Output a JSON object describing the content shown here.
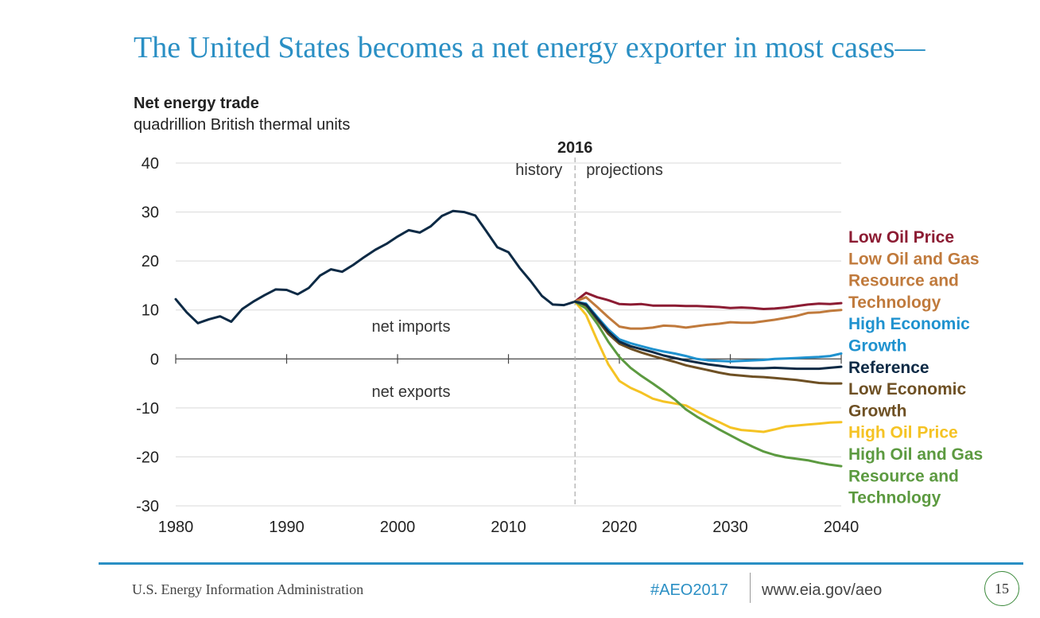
{
  "slide": {
    "title": "The United States becomes a net energy exporter in most cases—"
  },
  "footer": {
    "agency": "U.S. Energy Information Administration",
    "hashtag": "#AEO2017",
    "url": "www.eia.gov/aeo",
    "page_number": "15"
  },
  "chart_data": {
    "type": "line",
    "title": "Net energy trade",
    "subtitle": "quadrillion British thermal units",
    "xlim": [
      1980,
      2040
    ],
    "ylim": [
      -30,
      40
    ],
    "x_ticks": [
      "1980",
      "1990",
      "2000",
      "2010",
      "2020",
      "2030",
      "2040"
    ],
    "y_ticks": [
      "40",
      "30",
      "20",
      "10",
      "0",
      "-10",
      "-20",
      "-30"
    ],
    "divider": {
      "x": 2016,
      "label": "2016",
      "left_label": "history",
      "right_label": "projections"
    },
    "annotations": {
      "above_zero": "net imports",
      "below_zero": "net exports"
    },
    "history": {
      "color": "#0d2a45",
      "x": [
        1980,
        1981,
        1982,
        1983,
        1984,
        1985,
        1986,
        1987,
        1988,
        1989,
        1990,
        1991,
        1992,
        1993,
        1994,
        1995,
        1996,
        1997,
        1998,
        1999,
        2000,
        2001,
        2002,
        2003,
        2004,
        2005,
        2006,
        2007,
        2008,
        2009,
        2010,
        2011,
        2012,
        2013,
        2014,
        2015,
        2016
      ],
      "y": [
        12.2,
        9.5,
        7.3,
        8.1,
        8.7,
        7.6,
        10.2,
        11.7,
        13,
        14.2,
        14.1,
        13.2,
        14.5,
        17,
        18.3,
        17.8,
        19.2,
        20.8,
        22.3,
        23.5,
        25,
        26.3,
        25.8,
        27.1,
        29.2,
        30.2,
        30,
        29.3,
        26.1,
        22.8,
        21.8,
        18.6,
        15.9,
        12.9,
        11.1,
        11,
        11.7
      ]
    },
    "series": [
      {
        "name": "Low Oil Price",
        "color": "#8c1c33",
        "x": [
          2016,
          2017,
          2018,
          2019,
          2020,
          2021,
          2022,
          2023,
          2024,
          2025,
          2026,
          2027,
          2028,
          2029,
          2030,
          2031,
          2032,
          2033,
          2034,
          2035,
          2036,
          2037,
          2038,
          2039,
          2040
        ],
        "y": [
          11.7,
          13.5,
          12.6,
          12,
          11.2,
          11.1,
          11.2,
          10.9,
          10.9,
          10.9,
          10.8,
          10.8,
          10.7,
          10.6,
          10.4,
          10.5,
          10.4,
          10.2,
          10.3,
          10.5,
          10.8,
          11.1,
          11.3,
          11.2,
          11.4
        ]
      },
      {
        "name": "Low Oil and Gas Resource and Technology",
        "color": "#c07a3c",
        "x": [
          2016,
          2017,
          2018,
          2019,
          2020,
          2021,
          2022,
          2023,
          2024,
          2025,
          2026,
          2027,
          2028,
          2029,
          2030,
          2031,
          2032,
          2033,
          2034,
          2035,
          2036,
          2037,
          2038,
          2039,
          2040
        ],
        "y": [
          11.7,
          12.6,
          10.6,
          8.5,
          6.6,
          6.2,
          6.2,
          6.4,
          6.8,
          6.7,
          6.4,
          6.7,
          7,
          7.2,
          7.5,
          7.4,
          7.4,
          7.7,
          8,
          8.4,
          8.8,
          9.4,
          9.5,
          9.8,
          10
        ]
      },
      {
        "name": "High Economic Growth",
        "color": "#1f92cf",
        "x": [
          2016,
          2017,
          2018,
          2019,
          2020,
          2021,
          2022,
          2023,
          2024,
          2025,
          2026,
          2027,
          2028,
          2029,
          2030,
          2031,
          2032,
          2033,
          2034,
          2035,
          2036,
          2037,
          2038,
          2039,
          2040
        ],
        "y": [
          11.7,
          11.3,
          8.6,
          6,
          4,
          3.2,
          2.6,
          2,
          1.5,
          1.1,
          0.6,
          0,
          -0.3,
          -0.4,
          -0.5,
          -0.4,
          -0.3,
          -0.2,
          0,
          0.1,
          0.2,
          0.3,
          0.4,
          0.6,
          1.1
        ]
      },
      {
        "name": "Reference",
        "color": "#0d2a45",
        "x": [
          2016,
          2017,
          2018,
          2019,
          2020,
          2021,
          2022,
          2023,
          2024,
          2025,
          2026,
          2027,
          2028,
          2029,
          2030,
          2031,
          2032,
          2033,
          2034,
          2035,
          2036,
          2037,
          2038,
          2039,
          2040
        ],
        "y": [
          11.7,
          11.1,
          8.3,
          5.6,
          3.5,
          2.6,
          2,
          1.4,
          0.7,
          0.2,
          -0.3,
          -0.7,
          -1.1,
          -1.4,
          -1.7,
          -1.8,
          -1.9,
          -1.9,
          -1.8,
          -1.9,
          -2,
          -2,
          -2,
          -1.8,
          -1.6
        ]
      },
      {
        "name": "Low Economic Growth",
        "color": "#6e5024",
        "x": [
          2016,
          2017,
          2018,
          2019,
          2020,
          2021,
          2022,
          2023,
          2024,
          2025,
          2026,
          2027,
          2028,
          2029,
          2030,
          2031,
          2032,
          2033,
          2034,
          2035,
          2036,
          2037,
          2038,
          2039,
          2040
        ],
        "y": [
          11.7,
          10.9,
          8,
          5.1,
          3.1,
          2.1,
          1.3,
          0.6,
          0,
          -0.6,
          -1.3,
          -1.8,
          -2.3,
          -2.8,
          -3.2,
          -3.4,
          -3.6,
          -3.7,
          -3.9,
          -4.1,
          -4.3,
          -4.6,
          -4.9,
          -5,
          -5
        ]
      },
      {
        "name": "High Oil Price",
        "color": "#f5c324",
        "x": [
          2016,
          2017,
          2018,
          2019,
          2020,
          2021,
          2022,
          2023,
          2024,
          2025,
          2026,
          2027,
          2028,
          2029,
          2030,
          2031,
          2032,
          2033,
          2034,
          2035,
          2036,
          2037,
          2038,
          2039,
          2040
        ],
        "y": [
          11.7,
          9,
          3.8,
          -1.1,
          -4.5,
          -5.9,
          -6.9,
          -8.1,
          -8.7,
          -9.1,
          -9.5,
          -10.7,
          -11.9,
          -12.9,
          -14,
          -14.5,
          -14.7,
          -14.9,
          -14.4,
          -13.8,
          -13.6,
          -13.4,
          -13.2,
          -13,
          -12.9
        ]
      },
      {
        "name": "High Oil and Gas Resource and Technology",
        "color": "#5c9a40",
        "x": [
          2016,
          2017,
          2018,
          2019,
          2020,
          2021,
          2022,
          2023,
          2024,
          2025,
          2026,
          2027,
          2028,
          2029,
          2030,
          2031,
          2032,
          2033,
          2034,
          2035,
          2036,
          2037,
          2038,
          2039,
          2040
        ],
        "y": [
          11.7,
          10.3,
          7.2,
          3.5,
          0.4,
          -1.8,
          -3.5,
          -5,
          -6.6,
          -8.3,
          -10.3,
          -11.8,
          -13.1,
          -14.4,
          -15.6,
          -16.8,
          -17.9,
          -18.9,
          -19.6,
          -20.1,
          -20.4,
          -20.7,
          -21.2,
          -21.6,
          -21.9
        ]
      }
    ],
    "legend": {
      "placement": "right",
      "entries": [
        {
          "lines": [
            "Low Oil Price"
          ],
          "color": "#8c1c33"
        },
        {
          "lines": [
            "Low Oil and Gas",
            "Resource and",
            "Technology"
          ],
          "color": "#c07a3c"
        },
        {
          "lines": [
            "High Economic",
            "Growth"
          ],
          "color": "#1f92cf"
        },
        {
          "lines": [
            "Reference"
          ],
          "color": "#0d2a45"
        },
        {
          "lines": [
            "Low Economic",
            "Growth"
          ],
          "color": "#6e5024"
        },
        {
          "lines": [
            "High Oil Price"
          ],
          "color": "#f5c324"
        },
        {
          "lines": [
            "High Oil and Gas",
            "Resource and",
            "Technology"
          ],
          "color": "#5c9a40"
        }
      ]
    },
    "grid": true
  }
}
